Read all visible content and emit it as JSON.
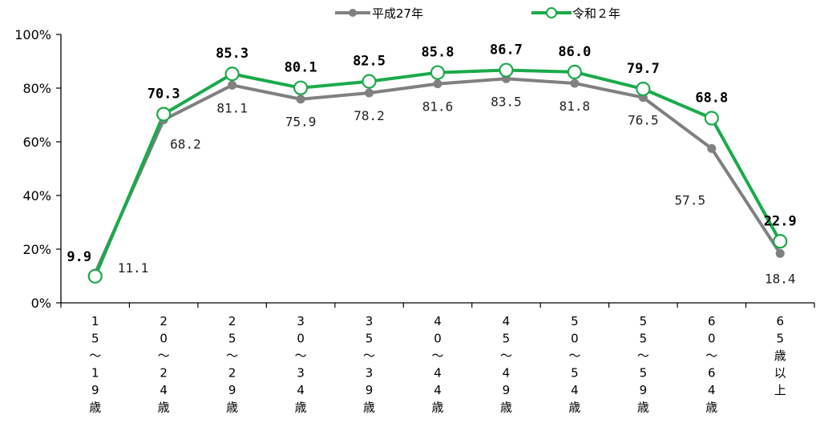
{
  "chart_data": {
    "type": "line",
    "categories": [
      "15〜19歳",
      "20〜24歳",
      "25〜29歳",
      "30〜34歳",
      "35〜39歳",
      "40〜44歳",
      "45〜49歳",
      "50〜54歳",
      "55〜59歳",
      "60〜64歳",
      "65歳以上"
    ],
    "category_glyphs": [
      [
        "1",
        "5",
        "〜",
        "1",
        "9",
        "歳"
      ],
      [
        "2",
        "0",
        "〜",
        "2",
        "4",
        "歳"
      ],
      [
        "2",
        "5",
        "〜",
        "2",
        "9",
        "歳"
      ],
      [
        "3",
        "0",
        "〜",
        "3",
        "4",
        "歳"
      ],
      [
        "3",
        "5",
        "〜",
        "3",
        "9",
        "歳"
      ],
      [
        "4",
        "0",
        "〜",
        "4",
        "4",
        "歳"
      ],
      [
        "4",
        "5",
        "〜",
        "4",
        "9",
        "歳"
      ],
      [
        "5",
        "0",
        "〜",
        "5",
        "4",
        "歳"
      ],
      [
        "5",
        "5",
        "〜",
        "5",
        "9",
        "歳"
      ],
      [
        "6",
        "0",
        "〜",
        "6",
        "4",
        "歳"
      ],
      [
        "6",
        "5",
        "歳",
        "以",
        "上"
      ]
    ],
    "series": [
      {
        "name": "平成27年",
        "values": [
          11.1,
          68.2,
          81.1,
          75.9,
          78.2,
          81.6,
          83.5,
          81.8,
          76.5,
          57.5,
          18.4
        ],
        "color": "#808080",
        "labels": [
          "11.1",
          "68.2",
          "81.1",
          "75.9",
          "78.2",
          "81.6",
          "83.5",
          "81.8",
          "76.5",
          "57.5",
          "18.4"
        ]
      },
      {
        "name": "令和２年",
        "values": [
          9.9,
          70.3,
          85.3,
          80.1,
          82.5,
          85.8,
          86.7,
          86.0,
          79.7,
          68.8,
          22.9
        ],
        "color": "#1aaa4a",
        "labels": [
          "9.9",
          "70.3",
          "85.3",
          "80.1",
          "82.5",
          "85.8",
          "86.7",
          "86.0",
          "79.7",
          "68.8",
          "22.9"
        ]
      }
    ],
    "yticks": [
      "0%",
      "20%",
      "40%",
      "60%",
      "80%",
      "100%"
    ],
    "ylim": [
      0,
      100
    ],
    "legend_position": "top-center"
  }
}
